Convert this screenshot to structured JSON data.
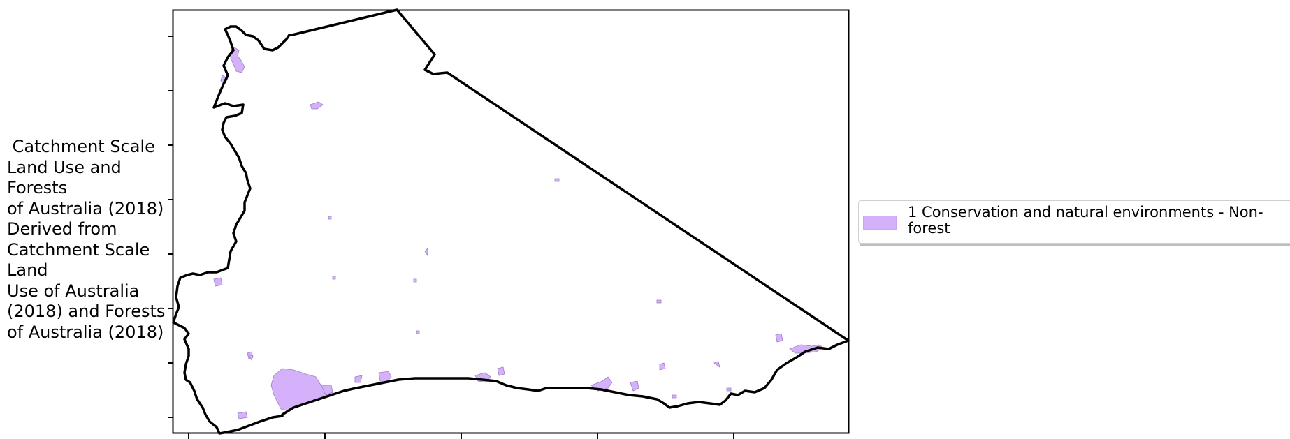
{
  "map": {
    "title": " Catchment Scale\nLand Use and Forests\nof Australia (2018)\nDerived from\nCatchment Scale Land\nUse of Australia\n(2018) and Forests\nof Australia (2018)",
    "fill_color": "#d5b1fb",
    "boundary_color": "#000000"
  },
  "legend": {
    "entries": [
      {
        "label": "1 Conservation and natural environments - Non-forest",
        "color": "#d5b1fb"
      }
    ]
  }
}
